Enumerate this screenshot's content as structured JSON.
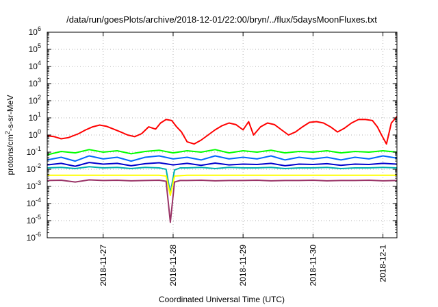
{
  "chart_data": {
    "type": "line",
    "title": "/data/run/goesPlots/archive/2018-12-01/22:00/bryn/../flux/5daysMoonFluxes.txt",
    "xlabel": "Coordinated Universal Time (UTC)",
    "ylabel": {
      "base": "protons/cm",
      "sup": "2",
      "rest": "-s-sr-MeV"
    },
    "yscale": "log",
    "ylim_exponents": [
      -6,
      6
    ],
    "ytick_base": "10",
    "ytick_exponents": [
      "-6",
      "-5",
      "-4",
      "-3",
      "-2",
      "-1",
      "0",
      "1",
      "2",
      "3",
      "4",
      "5",
      "6"
    ],
    "xlim": [
      0,
      5
    ],
    "x_units": "days from start of window",
    "xtick_labels": [
      "2018-11-27",
      "2018-11-28",
      "2018-11-29",
      "2018-11-30",
      "2018-12-1"
    ],
    "xtick_positions": [
      0.8,
      1.8,
      2.8,
      3.8,
      4.8
    ],
    "grid": true,
    "legend": "none",
    "series": [
      {
        "color": "#ff0000",
        "x": [
          0.0,
          0.1,
          0.2,
          0.3,
          0.45,
          0.55,
          0.65,
          0.75,
          0.85,
          0.95,
          1.05,
          1.15,
          1.25,
          1.35,
          1.45,
          1.55,
          1.62,
          1.7,
          1.78,
          1.85,
          1.92,
          2.0,
          2.1,
          2.2,
          2.3,
          2.4,
          2.5,
          2.6,
          2.7,
          2.8,
          2.88,
          2.95,
          3.05,
          3.15,
          3.25,
          3.35,
          3.45,
          3.55,
          3.65,
          3.75,
          3.85,
          3.95,
          4.05,
          4.15,
          4.25,
          4.35,
          4.45,
          4.55,
          4.65,
          4.72,
          4.78,
          4.85,
          4.92,
          5.0
        ],
        "y": [
          0.9,
          0.8,
          0.6,
          0.7,
          1.2,
          2.0,
          3.0,
          3.8,
          3.2,
          2.2,
          1.5,
          1.0,
          0.8,
          1.2,
          3.0,
          2.2,
          5.0,
          8.0,
          7.0,
          3.0,
          1.5,
          0.4,
          0.3,
          0.5,
          1.0,
          2.0,
          3.5,
          5.0,
          4.0,
          2.0,
          6.0,
          1.0,
          3.0,
          5.0,
          4.0,
          2.0,
          1.0,
          1.5,
          3.0,
          5.5,
          6.0,
          5.0,
          3.0,
          1.5,
          2.5,
          5.0,
          8.0,
          8.0,
          7.0,
          3.0,
          1.0,
          0.3,
          5.0,
          12.0
        ]
      },
      {
        "color": "#00ff00",
        "x": [
          0.0,
          0.2,
          0.4,
          0.6,
          0.8,
          1.0,
          1.2,
          1.4,
          1.6,
          1.8,
          2.0,
          2.2,
          2.4,
          2.6,
          2.8,
          3.0,
          3.2,
          3.4,
          3.6,
          3.8,
          4.0,
          4.2,
          4.4,
          4.6,
          4.8,
          5.0
        ],
        "y": [
          0.07,
          0.11,
          0.09,
          0.14,
          0.1,
          0.12,
          0.08,
          0.11,
          0.13,
          0.09,
          0.12,
          0.1,
          0.14,
          0.09,
          0.12,
          0.1,
          0.13,
          0.09,
          0.11,
          0.1,
          0.12,
          0.09,
          0.11,
          0.1,
          0.12,
          0.1
        ]
      },
      {
        "color": "#0066ff",
        "x": [
          0.0,
          0.2,
          0.4,
          0.6,
          0.8,
          1.0,
          1.2,
          1.4,
          1.6,
          1.8,
          2.0,
          2.2,
          2.4,
          2.6,
          2.8,
          3.0,
          3.2,
          3.4,
          3.6,
          3.8,
          4.0,
          4.2,
          4.4,
          4.6,
          4.8,
          5.0
        ],
        "y": [
          0.035,
          0.05,
          0.03,
          0.06,
          0.04,
          0.05,
          0.03,
          0.05,
          0.06,
          0.04,
          0.05,
          0.035,
          0.06,
          0.04,
          0.05,
          0.04,
          0.06,
          0.035,
          0.05,
          0.04,
          0.05,
          0.035,
          0.05,
          0.04,
          0.06,
          0.045
        ]
      },
      {
        "color": "#0000cc",
        "x": [
          0.0,
          0.2,
          0.4,
          0.6,
          0.8,
          1.0,
          1.2,
          1.4,
          1.6,
          1.8,
          2.0,
          2.2,
          2.4,
          2.6,
          2.8,
          3.0,
          3.2,
          3.4,
          3.6,
          3.8,
          4.0,
          4.2,
          4.4,
          4.6,
          4.8,
          5.0
        ],
        "y": [
          0.018,
          0.022,
          0.015,
          0.025,
          0.02,
          0.022,
          0.016,
          0.021,
          0.024,
          0.018,
          0.022,
          0.017,
          0.023,
          0.018,
          0.02,
          0.019,
          0.022,
          0.016,
          0.02,
          0.019,
          0.021,
          0.017,
          0.02,
          0.019,
          0.022,
          0.02
        ]
      },
      {
        "color": "#00b0b0",
        "x": [
          0.0,
          0.2,
          0.4,
          0.6,
          0.8,
          1.0,
          1.2,
          1.4,
          1.6,
          1.7,
          1.76,
          1.82,
          1.9,
          2.0,
          2.2,
          2.4,
          2.6,
          2.8,
          3.0,
          3.2,
          3.4,
          3.6,
          3.8,
          4.0,
          4.2,
          4.4,
          4.6,
          4.8,
          5.0
        ],
        "y": [
          0.012,
          0.013,
          0.011,
          0.014,
          0.012,
          0.013,
          0.011,
          0.013,
          0.012,
          0.01,
          0.0004,
          0.009,
          0.012,
          0.012,
          0.013,
          0.011,
          0.013,
          0.012,
          0.012,
          0.013,
          0.011,
          0.012,
          0.012,
          0.013,
          0.011,
          0.012,
          0.012,
          0.013,
          0.012
        ]
      },
      {
        "color": "#ffff00",
        "x": [
          0.0,
          0.4,
          0.8,
          1.2,
          1.6,
          1.7,
          1.76,
          1.82,
          2.0,
          2.4,
          2.8,
          3.2,
          3.6,
          4.0,
          4.4,
          4.8,
          5.0
        ],
        "y": [
          0.0045,
          0.0045,
          0.0045,
          0.0045,
          0.0045,
          0.004,
          0.0003,
          0.004,
          0.0045,
          0.0045,
          0.0045,
          0.0045,
          0.0045,
          0.0045,
          0.0045,
          0.0045,
          0.0045
        ]
      },
      {
        "color": "#993366",
        "x": [
          0.0,
          0.2,
          0.4,
          0.6,
          0.8,
          1.0,
          1.2,
          1.4,
          1.6,
          1.7,
          1.76,
          1.82,
          1.9,
          2.0,
          2.2,
          2.4,
          2.6,
          2.8,
          3.0,
          3.2,
          3.4,
          3.6,
          3.8,
          4.0,
          4.2,
          4.4,
          4.6,
          4.8,
          5.0
        ],
        "y": [
          0.0022,
          0.0023,
          0.0018,
          0.0024,
          0.0022,
          0.0023,
          0.0021,
          0.0022,
          0.0023,
          0.002,
          8e-06,
          0.0018,
          0.0022,
          0.0022,
          0.0023,
          0.0021,
          0.0022,
          0.0022,
          0.0023,
          0.0021,
          0.0022,
          0.0022,
          0.0023,
          0.0021,
          0.0022,
          0.0022,
          0.0023,
          0.0021,
          0.0022
        ]
      }
    ]
  }
}
